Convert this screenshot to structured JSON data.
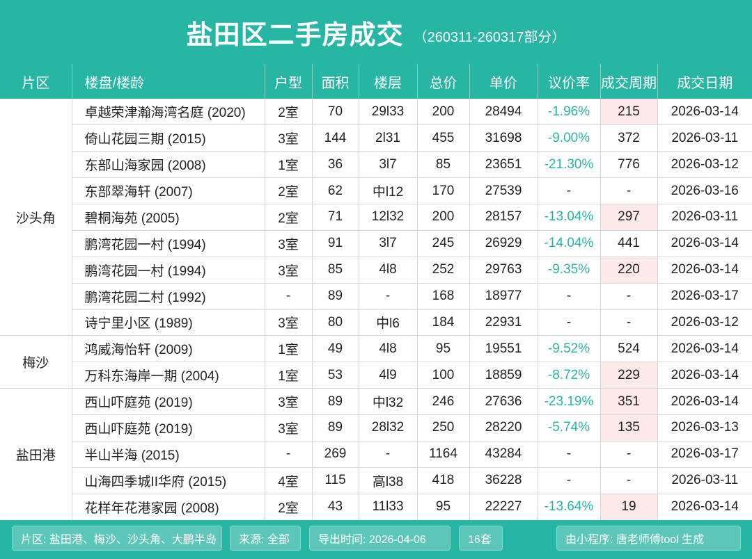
{
  "header": {
    "title": "盐田区二手房成交",
    "subtitle": "（260311-260317部分）"
  },
  "columns": [
    "片区",
    "楼盘/楼龄",
    "户型",
    "面积",
    "楼层",
    "总价",
    "单价",
    "议价率",
    "成交周期",
    "成交日期"
  ],
  "districts": [
    {
      "name": "沙头角",
      "rows": [
        {
          "name": "卓越荣津瀚海湾名庭 (2020)",
          "layout": "2室",
          "area": "70",
          "floor": "29l33",
          "total": "200",
          "unit": "28494",
          "rate": "-1.96%",
          "cycle": "215",
          "date": "2026-03-14",
          "hot": true
        },
        {
          "name": "倚山花园三期 (2015)",
          "layout": "3室",
          "area": "144",
          "floor": "2l31",
          "total": "455",
          "unit": "31698",
          "rate": "-9.00%",
          "cycle": "372",
          "date": "2026-03-11",
          "hot": false
        },
        {
          "name": "东部山海家园 (2008)",
          "layout": "1室",
          "area": "36",
          "floor": "3l7",
          "total": "85",
          "unit": "23651",
          "rate": "-21.30%",
          "cycle": "776",
          "date": "2026-03-12",
          "hot": false
        },
        {
          "name": "东部翠海轩 (2007)",
          "layout": "2室",
          "area": "62",
          "floor": "中l12",
          "total": "170",
          "unit": "27539",
          "rate": "-",
          "cycle": "-",
          "date": "2026-03-16",
          "hot": false
        },
        {
          "name": "碧桐海苑 (2005)",
          "layout": "2室",
          "area": "71",
          "floor": "12l32",
          "total": "200",
          "unit": "28157",
          "rate": "-13.04%",
          "cycle": "297",
          "date": "2026-03-11",
          "hot": true
        },
        {
          "name": "鹏湾花园一村 (1994)",
          "layout": "3室",
          "area": "91",
          "floor": "3l7",
          "total": "245",
          "unit": "26929",
          "rate": "-14.04%",
          "cycle": "441",
          "date": "2026-03-14",
          "hot": false
        },
        {
          "name": "鹏湾花园一村 (1994)",
          "layout": "3室",
          "area": "85",
          "floor": "4l8",
          "total": "252",
          "unit": "29763",
          "rate": "-9.35%",
          "cycle": "220",
          "date": "2026-03-14",
          "hot": true
        },
        {
          "name": "鹏湾花园二村 (1992)",
          "layout": "-",
          "area": "89",
          "floor": "-",
          "total": "168",
          "unit": "18977",
          "rate": "-",
          "cycle": "-",
          "date": "2026-03-17",
          "hot": false
        },
        {
          "name": "诗宁里小区 (1989)",
          "layout": "3室",
          "area": "80",
          "floor": "中l6",
          "total": "184",
          "unit": "22931",
          "rate": "-",
          "cycle": "-",
          "date": "2026-03-12",
          "hot": false
        }
      ]
    },
    {
      "name": "梅沙",
      "rows": [
        {
          "name": "鸿威海怡轩 (2009)",
          "layout": "1室",
          "area": "49",
          "floor": "4l8",
          "total": "95",
          "unit": "19551",
          "rate": "-9.52%",
          "cycle": "524",
          "date": "2026-03-14",
          "hot": false
        },
        {
          "name": "万科东海岸一期 (2004)",
          "layout": "1室",
          "area": "53",
          "floor": "4l9",
          "total": "100",
          "unit": "18859",
          "rate": "-8.72%",
          "cycle": "229",
          "date": "2026-03-14",
          "hot": true
        }
      ]
    },
    {
      "name": "盐田港",
      "rows": [
        {
          "name": "西山吓庭苑 (2019)",
          "layout": "3室",
          "area": "89",
          "floor": "中l32",
          "total": "246",
          "unit": "27636",
          "rate": "-23.19%",
          "cycle": "351",
          "date": "2026-03-14",
          "hot": true
        },
        {
          "name": "西山吓庭苑 (2019)",
          "layout": "3室",
          "area": "89",
          "floor": "28l32",
          "total": "250",
          "unit": "28220",
          "rate": "-5.74%",
          "cycle": "135",
          "date": "2026-03-13",
          "hot": true
        },
        {
          "name": "半山半海 (2015)",
          "layout": "-",
          "area": "269",
          "floor": "-",
          "total": "1164",
          "unit": "43284",
          "rate": "-",
          "cycle": "-",
          "date": "2026-03-17",
          "hot": false
        },
        {
          "name": "山海四季城II华府 (2015)",
          "layout": "4室",
          "area": "115",
          "floor": "高l38",
          "total": "418",
          "unit": "36228",
          "rate": "-",
          "cycle": "-",
          "date": "2026-03-11",
          "hot": false
        },
        {
          "name": "花样年花港家园 (2008)",
          "layout": "2室",
          "area": "43",
          "floor": "11l33",
          "total": "95",
          "unit": "22227",
          "rate": "-13.64%",
          "cycle": "19",
          "date": "2026-03-14",
          "hot": true
        }
      ]
    }
  ],
  "footer": {
    "districts": "片区: 盐田港、梅沙、沙头角、大鹏半岛",
    "source": "来源: 全部",
    "export_time": "导出时间: 2026-04-06",
    "count": "16套",
    "generator": "由小程序: 唐老师傅tool 生成"
  },
  "colors": {
    "accent": "#27b5a4",
    "highlight": "#fde8ea"
  }
}
